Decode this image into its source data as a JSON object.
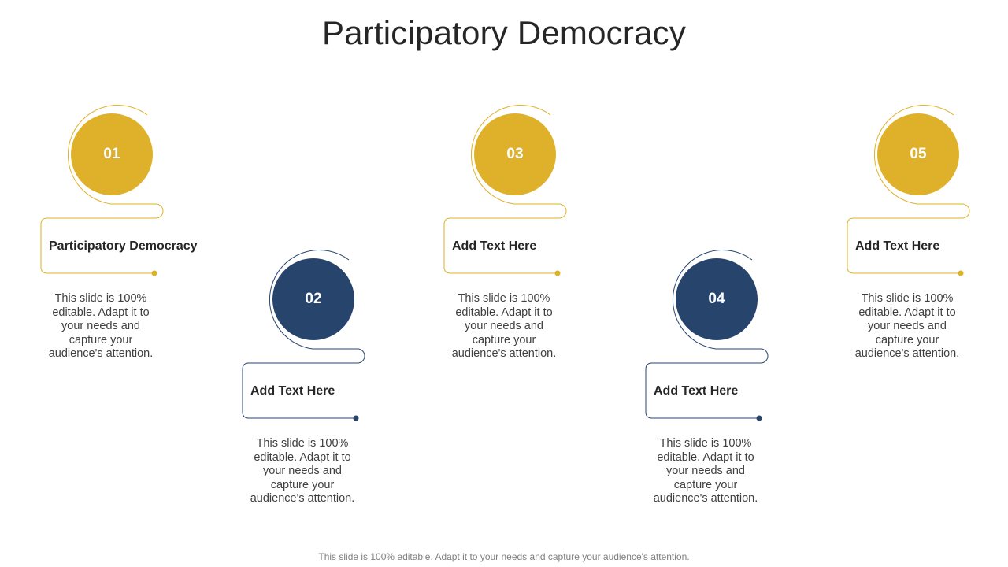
{
  "title": "Participatory Democracy",
  "colors": {
    "gold": "#DFB12A",
    "navy": "#27446D",
    "text": "#262626"
  },
  "steps": [
    {
      "number": "01",
      "heading": "Participatory Democracy",
      "description": "This slide is 100% editable. Adapt it to your needs and capture your audience's attention.",
      "color": "gold"
    },
    {
      "number": "02",
      "heading": "Add Text Here",
      "description": "This slide is 100% editable. Adapt it to your needs and capture your audience's attention.",
      "color": "navy"
    },
    {
      "number": "03",
      "heading": "Add Text Here",
      "description": "This slide is 100% editable. Adapt it to your needs and capture your audience's attention.",
      "color": "gold"
    },
    {
      "number": "04",
      "heading": "Add Text Here",
      "description": "This slide is 100% editable. Adapt it to your needs and capture your audience's attention.",
      "color": "navy"
    },
    {
      "number": "05",
      "heading": "Add Text Here",
      "description": "This slide is 100% editable. Adapt it to your needs and capture your audience's attention.",
      "color": "gold"
    }
  ],
  "footer": "This slide is 100% editable. Adapt it to your needs and capture your audience's attention."
}
